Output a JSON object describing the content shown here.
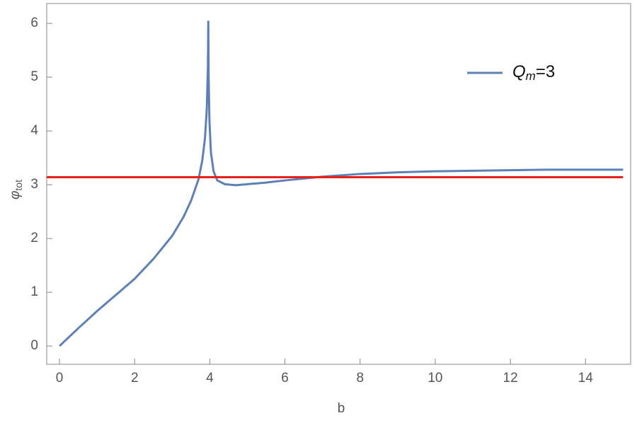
{
  "chart_data": {
    "type": "line",
    "xlabel": "b",
    "ylabel": {
      "base": "φ",
      "subscript": "tot"
    },
    "xlim": [
      -0.34,
      15.2
    ],
    "ylim": [
      -0.34,
      6.37
    ],
    "xticks": [
      0,
      2,
      4,
      6,
      8,
      10,
      12,
      14
    ],
    "yticks": [
      0,
      1,
      2,
      3,
      4,
      5,
      6
    ],
    "legend_position": "upper right",
    "series": [
      {
        "name": {
          "base": "Q",
          "subscript": "m",
          "suffix": "=3"
        },
        "color": "#5e81b5",
        "x": [
          0,
          0.5,
          1,
          1.5,
          2,
          2.5,
          3,
          3.3,
          3.5,
          3.7,
          3.8,
          3.87,
          3.92,
          3.95,
          3.96,
          3.97,
          3.99,
          4.03,
          4.1,
          4.2,
          4.4,
          4.7,
          5,
          5.5,
          6,
          7,
          8,
          9,
          10,
          11,
          12,
          13,
          14,
          15
        ],
        "values": [
          0,
          0.33,
          0.65,
          0.95,
          1.25,
          1.62,
          2.05,
          2.4,
          2.7,
          3.1,
          3.45,
          3.85,
          4.4,
          5.2,
          6.05,
          5.0,
          4.2,
          3.6,
          3.25,
          3.08,
          3.01,
          2.99,
          3.01,
          3.04,
          3.08,
          3.15,
          3.2,
          3.23,
          3.25,
          3.26,
          3.27,
          3.28,
          3.28,
          3.28
        ]
      },
      {
        "color": "#e8201c",
        "x": [
          -0.34,
          15
        ],
        "values": [
          3.14,
          3.14
        ]
      }
    ]
  }
}
